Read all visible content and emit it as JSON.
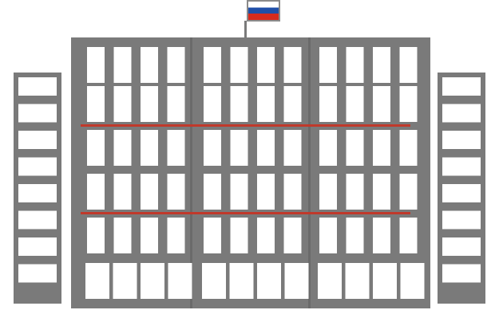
{
  "illustration": {
    "subject": "building-icon",
    "colors": {
      "background": "#ffffff",
      "building": "#7a7a7a",
      "window": "#ffffff",
      "floor_line": "#c0392b",
      "flag_white": "#ffffff",
      "flag_blue": "#1f4fa8",
      "flag_red": "#d52b1e",
      "flagpole": "#7a7a7a"
    }
  }
}
